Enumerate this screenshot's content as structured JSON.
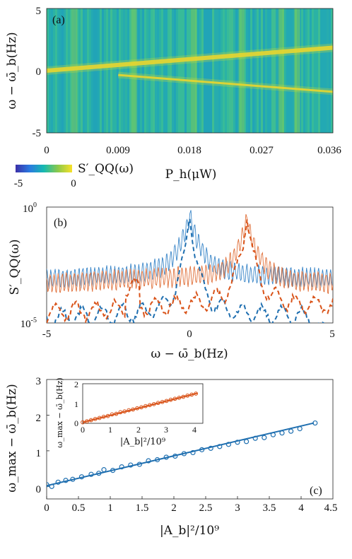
{
  "chart_data": [
    {
      "type": "heatmap",
      "panel_label": "(a)",
      "xlabel": "P_h(μW)",
      "ylabel": "ω − ω̄_b(Hz)",
      "xlim": [
        0,
        0.036
      ],
      "ylim": [
        -5,
        5
      ],
      "x_ticks": [
        "0",
        "0.009",
        "0.018",
        "0.027",
        "0.036"
      ],
      "y_ticks": [
        "5",
        "0",
        "-5"
      ],
      "colorbar": {
        "label": "S′_QQ(ω)",
        "min_label": "-5",
        "max_label": "0",
        "range": [
          -5,
          0
        ]
      },
      "ridges": [
        {
          "name": "upper",
          "x": [
            0,
            0.036
          ],
          "y": [
            0.0,
            1.85
          ]
        },
        {
          "name": "lower",
          "x": [
            0.009,
            0.036
          ],
          "y": [
            -0.35,
            -1.7
          ]
        }
      ],
      "bright_columns_x": [
        0.0035,
        0.011,
        0.0185,
        0.0245,
        0.0295,
        0.0315
      ]
    },
    {
      "type": "line",
      "panel_label": "(b)",
      "xlabel": "ω − ω̄_b(Hz)",
      "ylabel": "S′_QQ(ω)",
      "xlim": [
        -5,
        5
      ],
      "ylim_log10": [
        -5,
        0
      ],
      "x_ticks": [
        "-5",
        "0",
        "5"
      ],
      "y_ticks": [
        "10^0",
        "10^-5"
      ],
      "y_tick_parts": {
        "top": {
          "base": "10",
          "exp": "0"
        },
        "bottom": {
          "base": "10",
          "exp": "-5"
        }
      },
      "series": [
        {
          "style": "solid",
          "color": "#3a86c8",
          "peak_x": 0.0,
          "peak_log10": -0.25,
          "base_log10": -2.7
        },
        {
          "style": "solid",
          "color": "#e0703a",
          "peak_x": 2.0,
          "peak_log10": -0.3,
          "base_log10": -2.9
        },
        {
          "style": "dashed",
          "color": "#1f6fb0",
          "peak_x": 0.0,
          "peak_log10": 0.0,
          "base_log10": -4.3
        },
        {
          "style": "dashed",
          "color": "#d95319",
          "peak_x": 2.0,
          "peak_log10": 0.0,
          "base_log10": -3.9
        }
      ]
    },
    {
      "type": "scatter",
      "panel_label": "(c)",
      "xlabel": "|A_b|²/10⁹",
      "ylabel": "ω_max − ω̄_b(Hz)",
      "xlim": [
        0,
        4.5
      ],
      "ylim": [
        -0.35,
        3
      ],
      "x_ticks": [
        "0",
        "0.5",
        "1",
        "1.5",
        "2",
        "2.5",
        "3",
        "3.5",
        "4",
        "4.5"
      ],
      "y_ticks": [
        "0",
        "1",
        "2",
        "3"
      ],
      "color": "#1f6fb0",
      "x": [
        0.0,
        0.08,
        0.18,
        0.3,
        0.41,
        0.55,
        0.7,
        0.82,
        0.9,
        1.04,
        1.18,
        1.32,
        1.46,
        1.6,
        1.74,
        1.88,
        2.02,
        2.16,
        2.3,
        2.44,
        2.58,
        2.72,
        2.86,
        3.0,
        3.14,
        3.28,
        3.42,
        3.56,
        3.7,
        3.84,
        3.98,
        4.22
      ],
      "y": [
        0.05,
        0.0,
        0.12,
        0.17,
        0.2,
        0.27,
        0.34,
        0.37,
        0.47,
        0.45,
        0.55,
        0.6,
        0.62,
        0.72,
        0.75,
        0.82,
        0.85,
        0.92,
        0.95,
        1.03,
        1.07,
        1.12,
        1.18,
        1.24,
        1.26,
        1.35,
        1.37,
        1.45,
        1.5,
        1.55,
        1.62,
        1.78
      ],
      "fit": {
        "x": [
          0,
          4.2
        ],
        "y": [
          0.02,
          1.78
        ]
      },
      "inset": {
        "xlabel": "|A_b|²/10⁹",
        "ylabel": "ω_max − ω̄_b(Hz)",
        "xlim": [
          0,
          4.3
        ],
        "ylim": [
          0,
          2
        ],
        "x_ticks": [
          "0",
          "1",
          "2",
          "3",
          "4"
        ],
        "y_ticks": [
          "0",
          "1",
          "2"
        ],
        "color": "#d95319",
        "x": [
          0.0,
          0.15,
          0.3,
          0.45,
          0.6,
          0.75,
          0.9,
          1.05,
          1.2,
          1.35,
          1.5,
          1.65,
          1.8,
          1.95,
          2.1,
          2.25,
          2.4,
          2.55,
          2.7,
          2.85,
          3.0,
          3.15,
          3.3,
          3.45,
          3.6,
          3.75,
          3.9,
          4.05
        ],
        "y": [
          0.05,
          0.1,
          0.16,
          0.22,
          0.27,
          0.33,
          0.37,
          0.45,
          0.48,
          0.56,
          0.6,
          0.66,
          0.7,
          0.76,
          0.81,
          0.87,
          0.92,
          0.97,
          1.03,
          1.08,
          1.13,
          1.19,
          1.24,
          1.29,
          1.34,
          1.4,
          1.45,
          1.5
        ],
        "fit": {
          "x": [
            0,
            4.1
          ],
          "y": [
            0.05,
            1.52
          ]
        }
      }
    }
  ]
}
